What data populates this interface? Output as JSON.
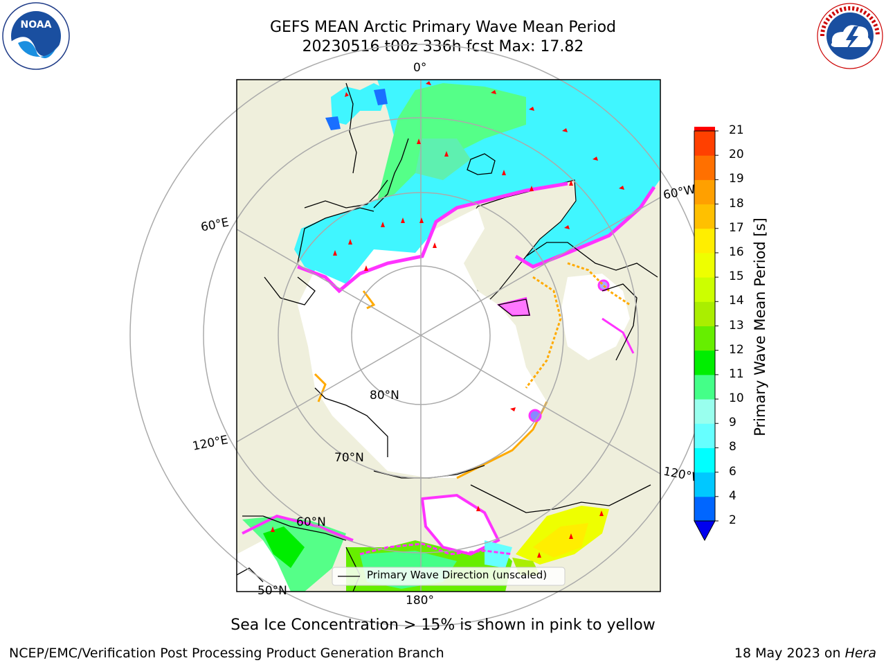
{
  "header": {
    "title_line1": "GEFS MEAN Arctic Primary Wave Mean Period",
    "title_line2": "20230516 t00z 336h fcst   Max: 17.82"
  },
  "logos": {
    "left": "NOAA",
    "left_ring": "NATIONAL OCEANIC AND ATMOSPHERIC ADMINISTRATION · U.S. DEPARTMENT OF COMMERCE",
    "right_ring": "NATIONAL WEATHER SERVICE"
  },
  "map": {
    "lon_labels": {
      "top": "0°",
      "e60": "60°E",
      "w60": "60°W",
      "e120": "120°E",
      "w120": "120°W",
      "bottom": "180°"
    },
    "lat_labels": {
      "n80": "80°N",
      "n70": "70°N",
      "n60": "60°N",
      "n50": "50°N"
    },
    "legend_label": "Primary Wave Direction (unscaled)",
    "colors": {
      "land": "#efefdc",
      "ocean_low": "#33ffff",
      "ice_edge": "#ff33ff",
      "direction": "#ff0000"
    }
  },
  "colorbar": {
    "label": "Primary Wave Mean Period [s]",
    "ticks": [
      "2",
      "4",
      "6",
      "8",
      "9",
      "10",
      "11",
      "12",
      "13",
      "14",
      "15",
      "16",
      "17",
      "18",
      "19",
      "20",
      "21"
    ],
    "colors": [
      "#0066ff",
      "#00c8ff",
      "#00ffff",
      "#66ffff",
      "#99ffee",
      "#44ff88",
      "#00ee00",
      "#66ee00",
      "#aaee00",
      "#ccff00",
      "#eeff00",
      "#ffee00",
      "#ffc000",
      "#ffa000",
      "#ff7000",
      "#ff4000",
      "#ff0000"
    ],
    "under_color": "#0000ee"
  },
  "annotation": "Sea Ice Concentration > 15% is shown in pink to yellow",
  "footer": {
    "left": "NCEP/EMC/Verification Post Processing Product Generation Branch",
    "date": "18 May 2023 on",
    "machine": "Hera"
  }
}
